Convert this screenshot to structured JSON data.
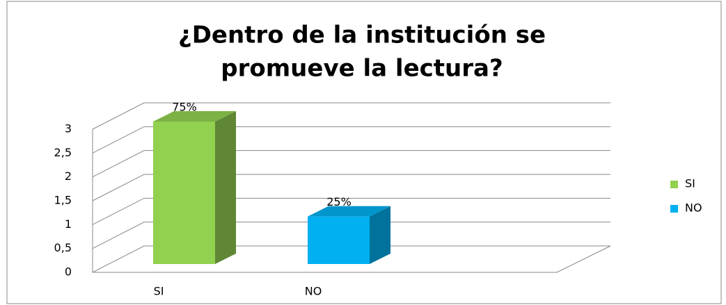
{
  "chart_data": {
    "type": "bar3d",
    "title": [
      "¿Dentro de la institución se",
      "promueve la lectura?"
    ],
    "categories": [
      "SI",
      "NO"
    ],
    "series": [
      {
        "name": "SI",
        "color": "#92d050",
        "values": [
          3,
          null
        ],
        "value_labels": [
          "75%",
          null
        ]
      },
      {
        "name": "NO",
        "color": "#00b0f0",
        "values": [
          null,
          1
        ],
        "value_labels": [
          null,
          "25%"
        ]
      }
    ],
    "ylim": [
      0,
      3
    ],
    "yticks": [
      0,
      {
        "value": 0.5,
        "label": "0,5"
      },
      1,
      {
        "value": 1.5,
        "label": "1,5"
      },
      2,
      {
        "value": 2.5,
        "label": "2,5"
      },
      3
    ],
    "grid": true,
    "legend": "right"
  }
}
